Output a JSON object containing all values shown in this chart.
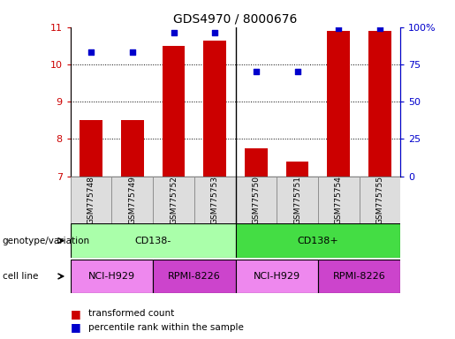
{
  "title": "GDS4970 / 8000676",
  "samples": [
    "GSM775748",
    "GSM775749",
    "GSM775752",
    "GSM775753",
    "GSM775750",
    "GSM775751",
    "GSM775754",
    "GSM775755"
  ],
  "bar_values": [
    8.5,
    8.5,
    10.5,
    10.65,
    7.75,
    7.4,
    10.9,
    10.9
  ],
  "percentile_values": [
    83,
    83,
    96,
    96,
    70,
    70,
    99,
    99
  ],
  "ylim_left": [
    7,
    11
  ],
  "ylim_right": [
    0,
    100
  ],
  "yticks_left": [
    7,
    8,
    9,
    10,
    11
  ],
  "yticks_right": [
    0,
    25,
    50,
    75,
    100
  ],
  "ytick_labels_right": [
    "0",
    "25",
    "50",
    "75",
    "100%"
  ],
  "bar_color": "#cc0000",
  "dot_color": "#0000cc",
  "genotype_groups": [
    {
      "label": "CD138-",
      "start": 0,
      "end": 4,
      "color": "#aaffaa"
    },
    {
      "label": "CD138+",
      "start": 4,
      "end": 8,
      "color": "#44dd44"
    }
  ],
  "cell_line_groups": [
    {
      "label": "NCI-H929",
      "start": 0,
      "end": 2,
      "color": "#ee88ee"
    },
    {
      "label": "RPMI-8226",
      "start": 2,
      "end": 4,
      "color": "#cc44cc"
    },
    {
      "label": "NCI-H929",
      "start": 4,
      "end": 6,
      "color": "#ee88ee"
    },
    {
      "label": "RPMI-8226",
      "start": 6,
      "end": 8,
      "color": "#cc44cc"
    }
  ],
  "legend_bar_label": "transformed count",
  "legend_dot_label": "percentile rank within the sample",
  "genotype_label": "genotype/variation",
  "cell_line_label": "cell line",
  "separator_positions": [
    4
  ],
  "bar_width": 0.55,
  "background_color": "#ffffff",
  "plot_bg_color": "#ffffff",
  "grid_color": "#000000",
  "tick_color_left": "#cc0000",
  "tick_color_right": "#0000cc",
  "sample_box_color": "#dddddd",
  "sample_box_edge": "#888888"
}
